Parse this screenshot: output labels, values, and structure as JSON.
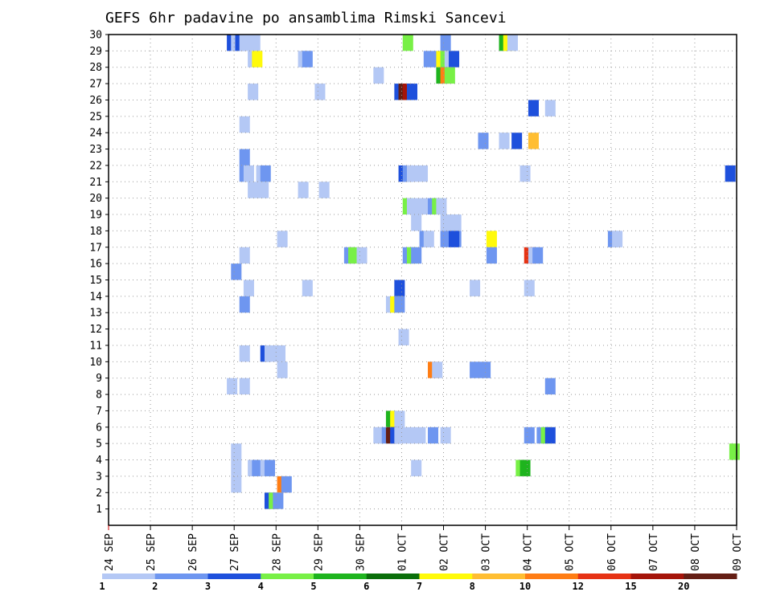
{
  "chart_data": {
    "type": "heatmap",
    "title": "GEFS 6hr padavine po ansamblima Rimski Sancevi",
    "x_tick_labels": [
      "24 SEP",
      "25 SEP",
      "26 SEP",
      "27 SEP",
      "28 SEP",
      "29 SEP",
      "30 SEP",
      "01 OCT",
      "02 OCT",
      "03 OCT",
      "04 OCT",
      "05 OCT",
      "06 OCT",
      "07 OCT",
      "08 OCT",
      "09 OCT"
    ],
    "x_range_days": [
      0,
      15
    ],
    "steps_per_day": 4,
    "y_tick_labels": [
      "1",
      "2",
      "3",
      "4",
      "5",
      "6",
      "7",
      "8",
      "9",
      "10",
      "11",
      "12",
      "13",
      "14",
      "15",
      "16",
      "17",
      "18",
      "19",
      "20",
      "21",
      "22",
      "23",
      "24",
      "25",
      "26",
      "27",
      "28",
      "29",
      "30"
    ],
    "y_range": [
      0,
      30
    ],
    "grid": true,
    "legend_placement": "bottom",
    "color_scale": {
      "labels": [
        "1",
        "2",
        "3",
        "4",
        "5",
        "6",
        "7",
        "8",
        "10",
        "12",
        "15",
        "20"
      ],
      "colors": [
        "#b4c8f5",
        "#6e96f0",
        "#1e50dc",
        "#78f046",
        "#1eb41e",
        "#0a6e0a",
        "#fffa0a",
        "#ffbe32",
        "#ff7d14",
        "#e63214",
        "#a5140a",
        "#641e14"
      ]
    },
    "cells": [
      {
        "m": 30,
        "x": [
          [
            2.95,
            1,
            2
          ],
          [
            3.05,
            1,
            0
          ],
          [
            3.15,
            1,
            2
          ],
          [
            3.25,
            2,
            0
          ],
          [
            7.15,
            1,
            3
          ],
          [
            8.05,
            1,
            1
          ],
          [
            9.45,
            1,
            4
          ],
          [
            9.55,
            1,
            6
          ],
          [
            9.65,
            1,
            0
          ]
        ]
      },
      {
        "m": 29,
        "x": [
          [
            3.45,
            1,
            0
          ],
          [
            3.55,
            1,
            6
          ],
          [
            4.65,
            1,
            0
          ],
          [
            4.75,
            1,
            1
          ],
          [
            7.65,
            2,
            1
          ],
          [
            7.95,
            1,
            6
          ],
          [
            8.05,
            1,
            3
          ],
          [
            8.15,
            1,
            0
          ],
          [
            8.25,
            1,
            2
          ]
        ]
      },
      {
        "m": 28,
        "x": [
          [
            6.45,
            1,
            0
          ],
          [
            7.95,
            1,
            4
          ],
          [
            8.05,
            1,
            8
          ],
          [
            8.15,
            1,
            3
          ]
        ]
      },
      {
        "m": 27,
        "x": [
          [
            3.45,
            1,
            0
          ],
          [
            5.05,
            1,
            0
          ],
          [
            6.95,
            1,
            2
          ],
          [
            7.05,
            1,
            11
          ],
          [
            7.15,
            1,
            10
          ],
          [
            7.25,
            1,
            2
          ]
        ]
      },
      {
        "m": 26,
        "x": [
          [
            10.15,
            1,
            2
          ],
          [
            10.55,
            1,
            0
          ]
        ]
      },
      {
        "m": 25,
        "x": [
          [
            3.25,
            1,
            0
          ]
        ]
      },
      {
        "m": 24,
        "x": [
          [
            8.95,
            1,
            1
          ],
          [
            9.45,
            1,
            0
          ],
          [
            9.75,
            1,
            2
          ],
          [
            10.15,
            1,
            7
          ]
        ]
      },
      {
        "m": 23,
        "x": [
          [
            3.25,
            1,
            1
          ]
        ]
      },
      {
        "m": 22,
        "x": [
          [
            3.25,
            1,
            1
          ],
          [
            3.35,
            1,
            0
          ],
          [
            3.65,
            1,
            0
          ],
          [
            3.75,
            1,
            1
          ],
          [
            7.05,
            1,
            2
          ],
          [
            7.15,
            1,
            1
          ],
          [
            7.25,
            2,
            0
          ],
          [
            9.95,
            1,
            0
          ],
          [
            14.85,
            1,
            2
          ]
        ]
      },
      {
        "m": 21,
        "x": [
          [
            3.45,
            2,
            0
          ],
          [
            4.65,
            1,
            0
          ],
          [
            5.15,
            1,
            0
          ]
        ]
      },
      {
        "m": 20,
        "x": [
          [
            7.15,
            1,
            3
          ],
          [
            7.25,
            2,
            0
          ],
          [
            7.75,
            1,
            1
          ],
          [
            7.85,
            1,
            3
          ],
          [
            7.95,
            1,
            0
          ]
        ]
      },
      {
        "m": 19,
        "x": [
          [
            7.35,
            1,
            0
          ],
          [
            8.05,
            2,
            0
          ]
        ]
      },
      {
        "m": 18,
        "x": [
          [
            4.15,
            1,
            0
          ],
          [
            7.55,
            1,
            1
          ],
          [
            7.65,
            1,
            0
          ],
          [
            8.05,
            2,
            1
          ],
          [
            8.25,
            1,
            2
          ],
          [
            9.15,
            1,
            6
          ],
          [
            12.05,
            1,
            1
          ],
          [
            12.15,
            1,
            0
          ]
        ]
      },
      {
        "m": 17,
        "x": [
          [
            3.25,
            1,
            0
          ],
          [
            5.75,
            1,
            1
          ],
          [
            5.85,
            1,
            3
          ],
          [
            6.05,
            1,
            0
          ],
          [
            7.15,
            1,
            1
          ],
          [
            7.25,
            1,
            3
          ],
          [
            7.35,
            1,
            1
          ],
          [
            9.15,
            1,
            1
          ],
          [
            10.05,
            1,
            9
          ],
          [
            10.15,
            1,
            0
          ],
          [
            10.25,
            1,
            1
          ]
        ]
      },
      {
        "m": 16,
        "x": [
          [
            3.05,
            1,
            1
          ]
        ]
      },
      {
        "m": 15,
        "x": [
          [
            3.35,
            1,
            0
          ],
          [
            4.75,
            1,
            0
          ],
          [
            6.95,
            1,
            2
          ],
          [
            8.75,
            1,
            0
          ],
          [
            10.05,
            1,
            0
          ]
        ]
      },
      {
        "m": 14,
        "x": [
          [
            3.25,
            1,
            1
          ],
          [
            6.75,
            1,
            0
          ],
          [
            6.85,
            1,
            6
          ],
          [
            6.95,
            1,
            1
          ]
        ]
      },
      {
        "m": 13,
        "x": []
      },
      {
        "m": 12,
        "x": [
          [
            7.05,
            1,
            0
          ]
        ]
      },
      {
        "m": 11,
        "x": [
          [
            3.25,
            1,
            0
          ],
          [
            3.75,
            1,
            2
          ],
          [
            3.85,
            2,
            0
          ]
        ]
      },
      {
        "m": 10,
        "x": [
          [
            4.15,
            1,
            0
          ],
          [
            7.75,
            1,
            8
          ],
          [
            7.85,
            1,
            0
          ],
          [
            8.75,
            2,
            1
          ]
        ]
      },
      {
        "m": 9,
        "x": [
          [
            2.95,
            1,
            0
          ],
          [
            3.25,
            1,
            0
          ],
          [
            10.55,
            1,
            1
          ]
        ]
      },
      {
        "m": 8,
        "x": []
      },
      {
        "m": 7,
        "x": [
          [
            6.75,
            1,
            4
          ],
          [
            6.85,
            1,
            6
          ],
          [
            6.95,
            1,
            0
          ]
        ]
      },
      {
        "m": 6,
        "x": [
          [
            6.45,
            1,
            0
          ],
          [
            6.55,
            1,
            0
          ],
          [
            6.65,
            1,
            1
          ],
          [
            6.75,
            1,
            11
          ],
          [
            6.85,
            1,
            2
          ],
          [
            6.95,
            3,
            0
          ],
          [
            7.75,
            1,
            1
          ],
          [
            8.05,
            1,
            0
          ],
          [
            10.05,
            1,
            1
          ],
          [
            10.35,
            1,
            1
          ],
          [
            10.45,
            1,
            3
          ],
          [
            10.55,
            1,
            2
          ]
        ]
      },
      {
        "m": 5,
        "x": [
          [
            3.05,
            1,
            0
          ],
          [
            14.95,
            1,
            3
          ]
        ]
      },
      {
        "m": 4,
        "x": [
          [
            3.05,
            1,
            0
          ],
          [
            3.45,
            1,
            0
          ],
          [
            3.55,
            1,
            1
          ],
          [
            3.75,
            1,
            0
          ],
          [
            3.85,
            1,
            1
          ],
          [
            7.35,
            1,
            0
          ],
          [
            9.85,
            1,
            3
          ],
          [
            9.95,
            1,
            4
          ]
        ]
      },
      {
        "m": 3,
        "x": [
          [
            3.05,
            1,
            0
          ],
          [
            4.15,
            1,
            8
          ],
          [
            4.25,
            1,
            1
          ]
        ]
      },
      {
        "m": 2,
        "x": [
          [
            3.85,
            1,
            2
          ],
          [
            3.95,
            1,
            3
          ],
          [
            4.05,
            1,
            1
          ]
        ]
      },
      {
        "m": 1,
        "x": []
      }
    ]
  }
}
